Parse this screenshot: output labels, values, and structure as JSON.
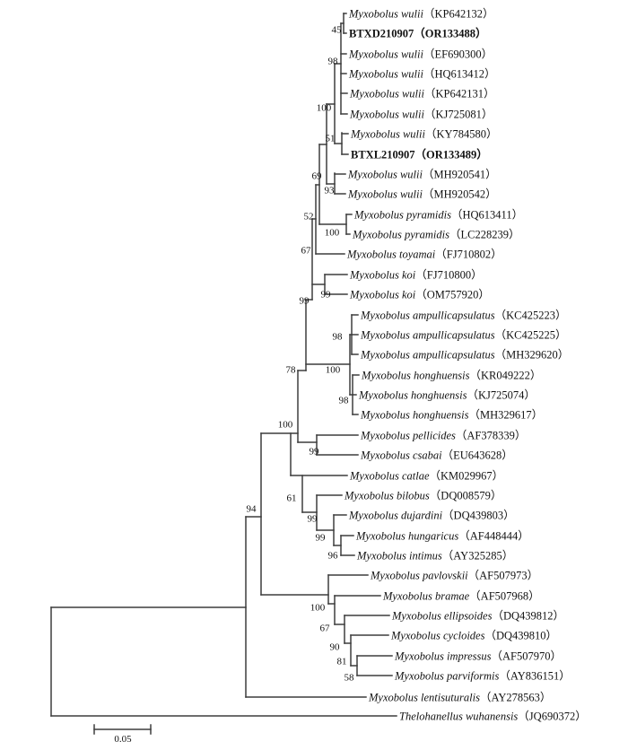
{
  "figure": {
    "type": "phylogenetic-tree",
    "scale_bar_label": "0.05"
  },
  "taxa": [
    {
      "species": "Myxobolus wulii",
      "accession": "（KP642132）",
      "bold": false
    },
    {
      "species": "BTXD210907",
      "accession": "（OR133488）",
      "bold": true
    },
    {
      "species": "Myxobolus wulii",
      "accession": "（EF690300）",
      "bold": false
    },
    {
      "species": "Myxobolus wulii",
      "accession": "（HQ613412）",
      "bold": false
    },
    {
      "species": "Myxobolus wulii",
      "accession": "（KP642131）",
      "bold": false
    },
    {
      "species": "Myxobolus wulii",
      "accession": "（KJ725081）",
      "bold": false
    },
    {
      "species": "Myxobolus wulii",
      "accession": "（KY784580）",
      "bold": false
    },
    {
      "species": "BTXL210907",
      "accession": "（OR133489）",
      "bold": true
    },
    {
      "species": "Myxobolus wulii",
      "accession": "（MH920541）",
      "bold": false
    },
    {
      "species": "Myxobolus wulii",
      "accession": "（MH920542）",
      "bold": false
    },
    {
      "species": "Myxobolus pyramidis",
      "accession": "（HQ613411）",
      "bold": false
    },
    {
      "species": "Myxobolus pyramidis",
      "accession": "（LC228239）",
      "bold": false
    },
    {
      "species": "Myxobolus toyamai",
      "accession": "（FJ710802）",
      "bold": false
    },
    {
      "species": "Myxobolus koi",
      "accession": "（FJ710800）",
      "bold": false
    },
    {
      "species": "Myxobolus koi",
      "accession": "（OM757920）",
      "bold": false
    },
    {
      "species": "Myxobolus ampullicapsulatus",
      "accession": "（KC425223）",
      "bold": false
    },
    {
      "species": "Myxobolus ampullicapsulatus",
      "accession": "（KC425225）",
      "bold": false
    },
    {
      "species": "Myxobolus ampullicapsulatus",
      "accession": "（MH329620）",
      "bold": false
    },
    {
      "species": "Myxobolus honghuensis",
      "accession": "（KR049222）",
      "bold": false
    },
    {
      "species": "Myxobolus honghuensis",
      "accession": "（KJ725074）",
      "bold": false
    },
    {
      "species": "Myxobolus honghuensis",
      "accession": "（MH329617）",
      "bold": false
    },
    {
      "species": "Myxobolus pellicides",
      "accession": "（AF378339）",
      "bold": false
    },
    {
      "species": "Myxobolus csabai",
      "accession": "（EU643628）",
      "bold": false
    },
    {
      "species": "Myxobolus catlae",
      "accession": "（KM029967）",
      "bold": false
    },
    {
      "species": "Myxobolus bilobus",
      "accession": "（DQ008579）",
      "bold": false
    },
    {
      "species": "Myxobolus dujardini",
      "accession": "（DQ439803）",
      "bold": false
    },
    {
      "species": "Myxobolus hungaricus",
      "accession": "（AF448444）",
      "bold": false
    },
    {
      "species": "Myxobolus intimus",
      "accession": "（AY325285）",
      "bold": false
    },
    {
      "species": "Myxobolus pavlovskii",
      "accession": "（AF507973）",
      "bold": false
    },
    {
      "species": "Myxobolus bramae",
      "accession": "（AF507968）",
      "bold": false
    },
    {
      "species": "Myxobolus ellipsoides",
      "accession": "（DQ439812）",
      "bold": false
    },
    {
      "species": "Myxobolus cycloides",
      "accession": "（DQ439810）",
      "bold": false
    },
    {
      "species": "Myxobolus impressus",
      "accession": "（AF507970）",
      "bold": false
    },
    {
      "species": "Myxobolus parviformis",
      "accession": "（AY836151）",
      "bold": false
    },
    {
      "species": "Myxobolus lentisuturalis",
      "accession": "（AY278563）",
      "bold": false
    },
    {
      "species": "Thelohanellus wuhanensis",
      "accession": "（JQ690372）",
      "bold": false
    }
  ],
  "bootstrap": {
    "b45": "45",
    "b98w": "98",
    "b100w": "100",
    "b51": "51",
    "b69": "69",
    "b93": "93",
    "b52": "52",
    "b100pyr": "100",
    "b67toy": "67",
    "b99deep": "99",
    "b99koi": "99",
    "b98amp": "98",
    "b100ah": "100",
    "b98hon": "98",
    "b78": "78",
    "b100big": "100",
    "b99pel": "99",
    "b61": "61",
    "b94": "94",
    "b99bil": "99",
    "b99duj": "99",
    "b96": "96",
    "b100pav": "100",
    "b67bra": "67",
    "b90": "90",
    "b81": "81",
    "b58": "58"
  },
  "colors": {
    "branch": "#3d3d3d",
    "text": "#111111",
    "background": "#ffffff"
  }
}
